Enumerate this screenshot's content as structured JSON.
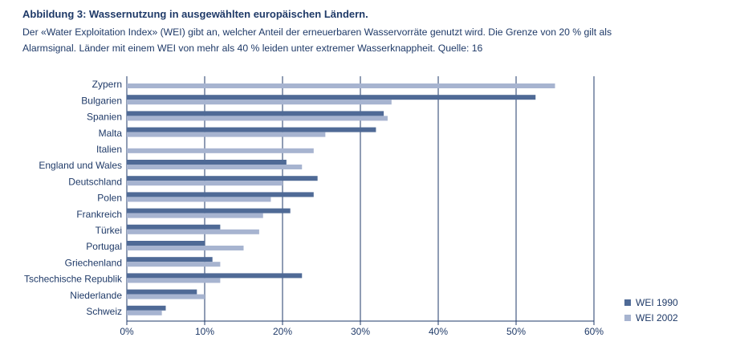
{
  "figure": {
    "title": "Abbildung 3: Wassernutzung in ausgewählten europäischen Ländern.",
    "caption": "Der «Water Exploitation Index» (WEI) gibt an, welcher Anteil der erneuerbaren Wasservorräte genutzt wird. Die Grenze von 20 % gilt als Alarmsignal. Länder mit einem WEI von mehr als 40 % leiden unter extremer Wasserknappheit. Quelle: 16"
  },
  "chart_data": {
    "type": "bar",
    "orientation": "horizontal",
    "categories": [
      "Zypern",
      "Bulgarien",
      "Spanien",
      "Malta",
      "Italien",
      "England und Wales",
      "Deutschland",
      "Polen",
      "Frankreich",
      "Türkei",
      "Portugal",
      "Griechenland",
      "Tschechische Republik",
      "Niederlande",
      "Schweiz"
    ],
    "series": [
      {
        "name": "WEI 1990",
        "color": "#4f6a96",
        "values": [
          null,
          52.5,
          33,
          32,
          null,
          20.5,
          24.5,
          24,
          21,
          12,
          10,
          11,
          22.5,
          9,
          5
        ]
      },
      {
        "name": "WEI 2002",
        "color": "#a7b4d0",
        "values": [
          55,
          34,
          33.5,
          25.5,
          24,
          22.5,
          20,
          18.5,
          17.5,
          17,
          15,
          12,
          12,
          10,
          4.5
        ]
      }
    ],
    "xlim": [
      0,
      60
    ],
    "xticks": [
      0,
      10,
      20,
      30,
      40,
      50,
      60
    ],
    "xtick_labels": [
      "0%",
      "10%",
      "20%",
      "30%",
      "40%",
      "50%",
      "60%"
    ],
    "xlabel": "",
    "ylabel": "",
    "grid": "vertical",
    "legend_position": "bottom-right"
  }
}
